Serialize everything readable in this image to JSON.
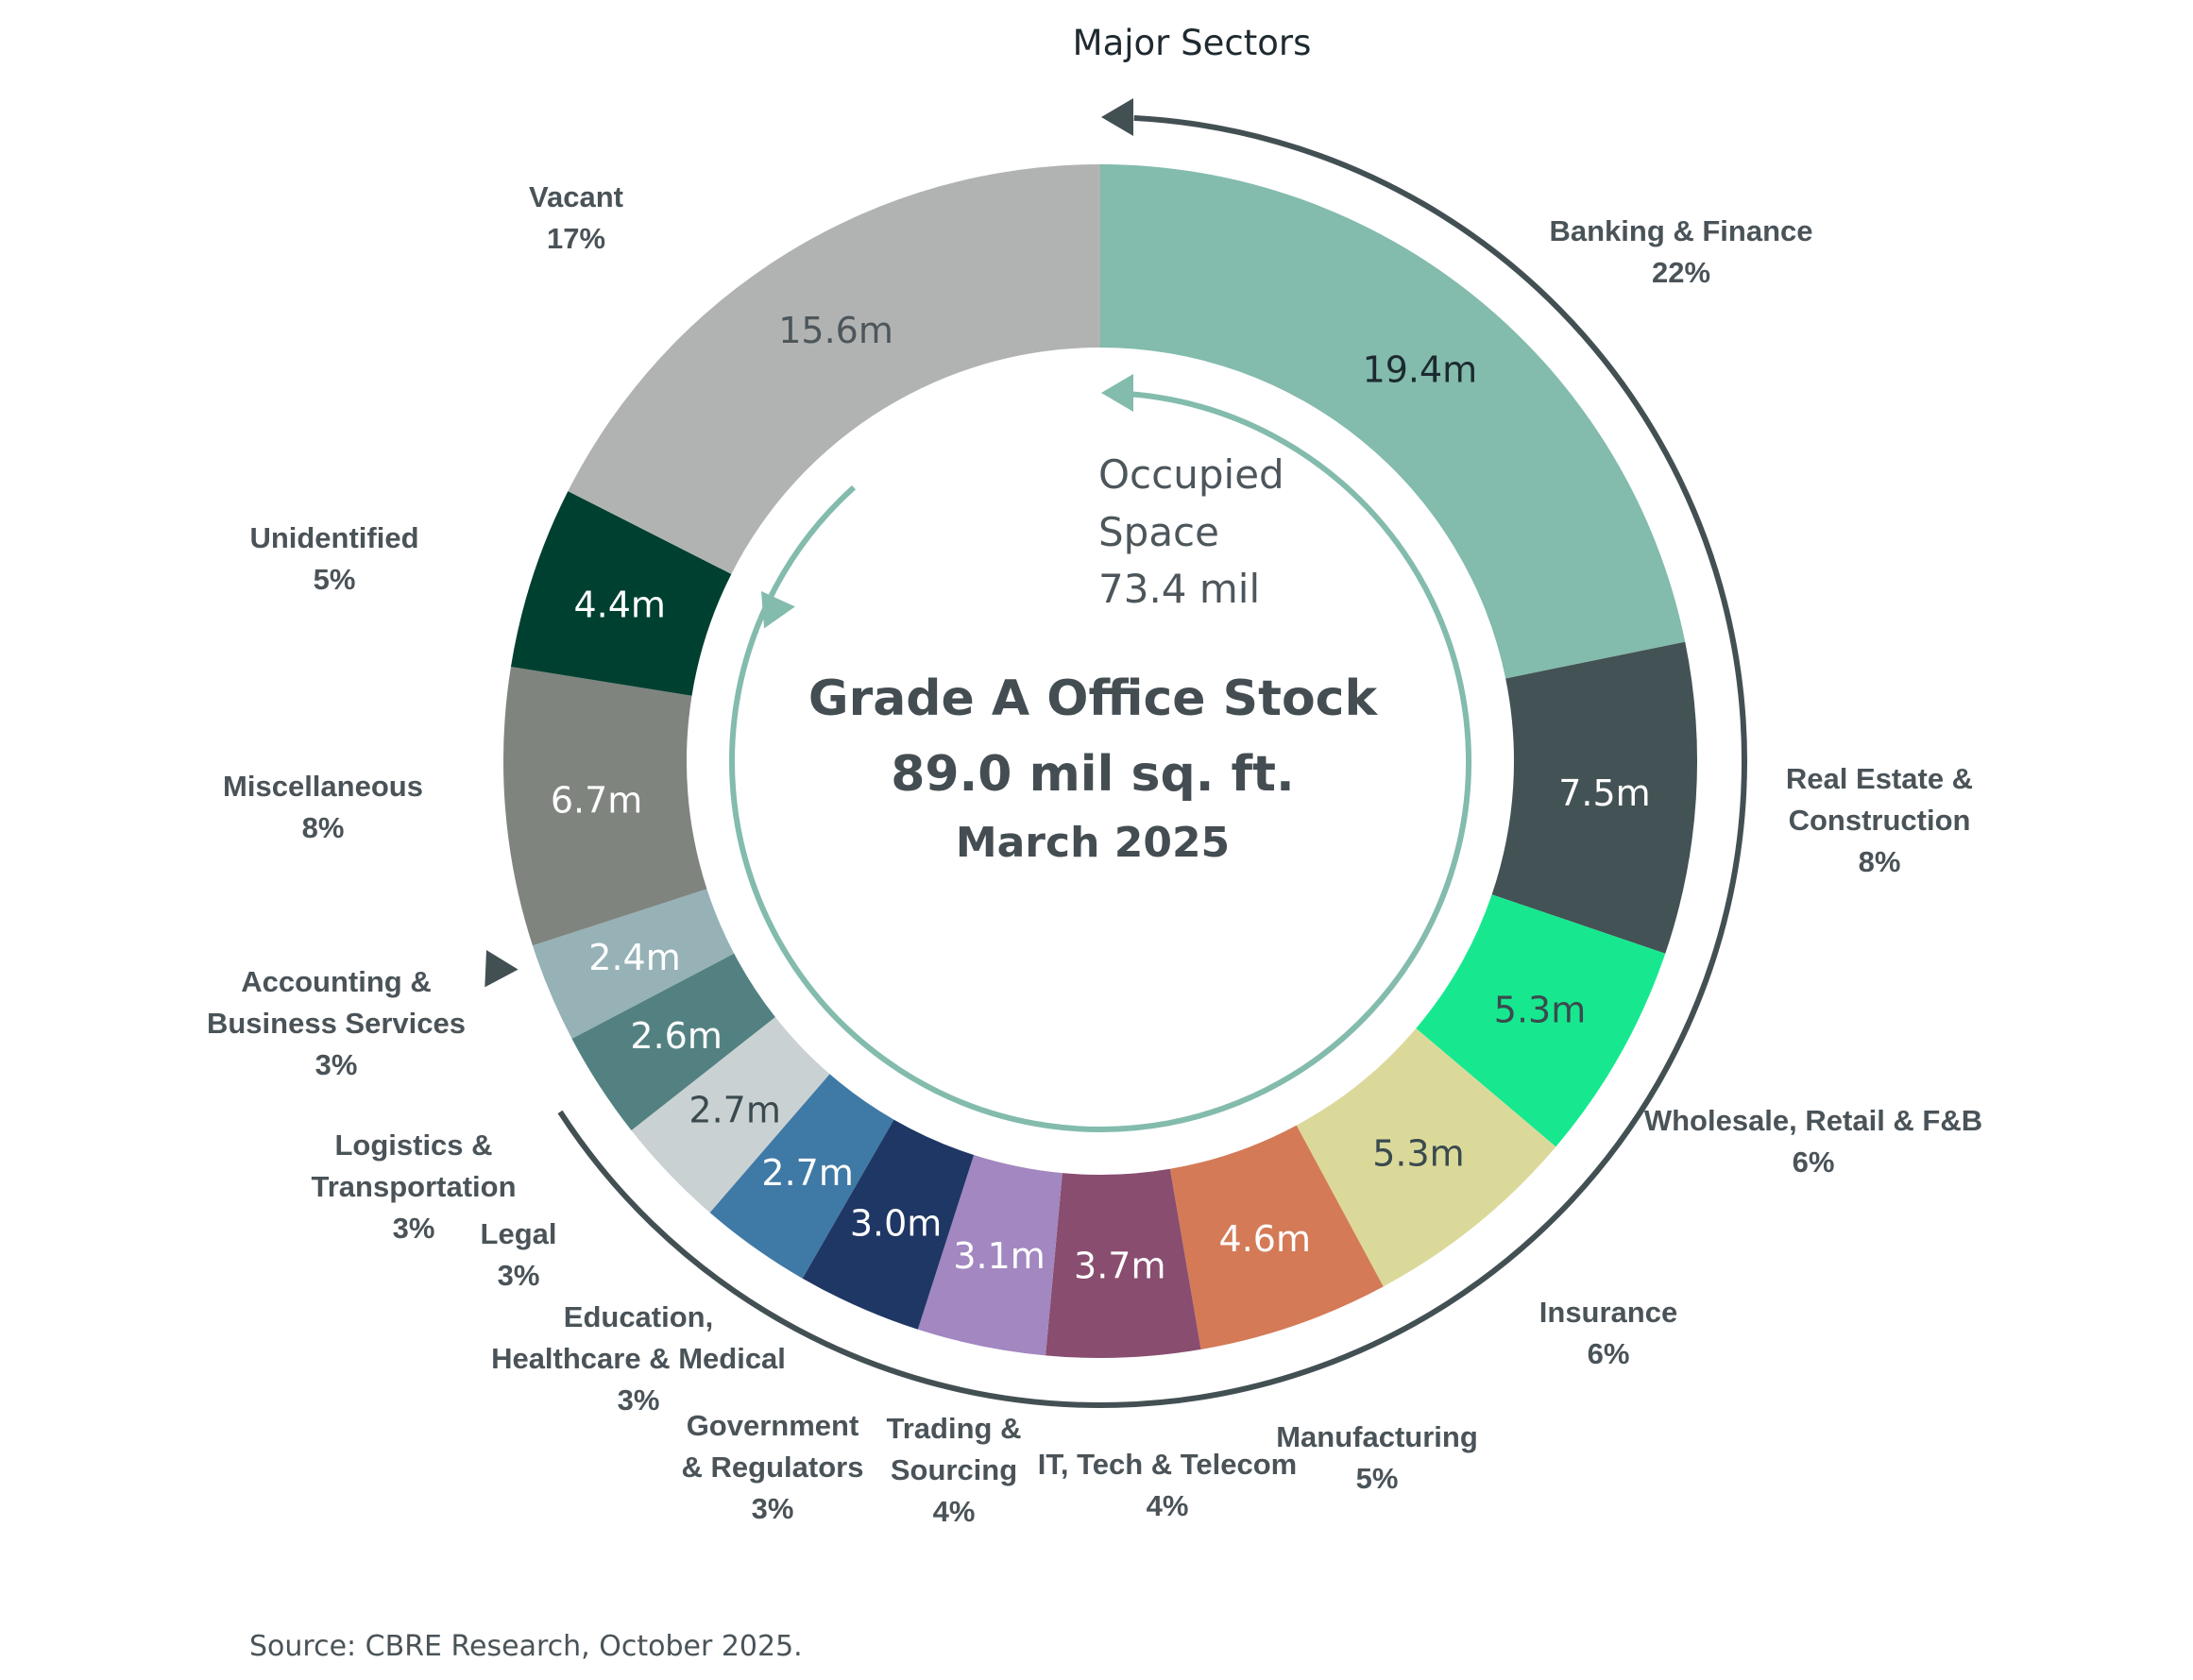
{
  "header": {
    "top_title": "Major Sectors"
  },
  "center": {
    "line1": "Grade A Office Stock",
    "line2": "89.0 mil sq. ft.",
    "line3": "March 2025"
  },
  "occupied": {
    "lines": [
      "Occupied",
      "Space",
      "73.4 mil"
    ]
  },
  "source": "Source: CBRE Research, October 2025.",
  "chart_data": {
    "type": "pie",
    "variant": "donut",
    "total": 89.0,
    "title": "Grade A Office Stock",
    "segments": [
      {
        "name_lines": [
          "Banking & Finance"
        ],
        "value": 19.4,
        "value_label": "19.4m",
        "pct": "22%",
        "color": "#83bbad",
        "text_color": "#1c2a30"
      },
      {
        "name_lines": [
          "Real Estate &",
          "Construction"
        ],
        "value": 7.5,
        "value_label": "7.5m",
        "pct": "8%",
        "color": "#435254",
        "text_color": "#ffffff"
      },
      {
        "name_lines": [
          "Wholesale, Retail & F&B"
        ],
        "value": 5.3,
        "value_label": "5.3m",
        "pct": "6%",
        "color": "#17e88f",
        "text_color": "#3a4a4e"
      },
      {
        "name_lines": [
          "Insurance"
        ],
        "value": 5.3,
        "value_label": "5.3m",
        "pct": "6%",
        "color": "#dbd99a",
        "text_color": "#3a4a4e"
      },
      {
        "name_lines": [
          "Manufacturing"
        ],
        "value": 4.6,
        "value_label": "4.6m",
        "pct": "5%",
        "color": "#d47a57",
        "text_color": "#ffffff"
      },
      {
        "name_lines": [
          "IT, Tech & Telecom"
        ],
        "value": 3.7,
        "value_label": "3.7m",
        "pct": "4%",
        "color": "#884d6f",
        "text_color": "#ffffff"
      },
      {
        "name_lines": [
          "Trading &",
          "Sourcing"
        ],
        "value": 3.1,
        "value_label": "3.1m",
        "pct": "4%",
        "color": "#a287c0",
        "text_color": "#ffffff"
      },
      {
        "name_lines": [
          "Government",
          "& Regulators"
        ],
        "value": 3.0,
        "value_label": "3.0m",
        "pct": "3%",
        "color": "#1f3765",
        "text_color": "#ffffff"
      },
      {
        "name_lines": [
          "Education,",
          "Healthcare & Medical"
        ],
        "value": 2.7,
        "value_label": "2.7m",
        "pct": "3%",
        "color": "#3f79a6",
        "text_color": "#ffffff"
      },
      {
        "name_lines": [
          "Legal"
        ],
        "value": 2.7,
        "value_label": "2.7m",
        "pct": "3%",
        "color": "#cad1d3",
        "text_color": "#3a4a4e"
      },
      {
        "name_lines": [
          "Logistics &",
          "Transportation"
        ],
        "value": 2.6,
        "value_label": "2.6m",
        "pct": "3%",
        "color": "#538181",
        "text_color": "#ffffff"
      },
      {
        "name_lines": [
          "Accounting &",
          "Business Services"
        ],
        "value": 2.4,
        "value_label": "2.4m",
        "pct": "3%",
        "color": "#96b2b6",
        "text_color": "#ffffff"
      },
      {
        "name_lines": [
          "Miscellaneous"
        ],
        "value": 6.7,
        "value_label": "6.7m",
        "pct": "8%",
        "color": "#7f847f",
        "text_color": "#ffffff"
      },
      {
        "name_lines": [
          "Unidentified"
        ],
        "value": 4.4,
        "value_label": "4.4m",
        "pct": "5%",
        "color": "#004030",
        "text_color": "#ffffff"
      },
      {
        "name_lines": [
          "Vacant"
        ],
        "value": 15.6,
        "value_label": "15.6m",
        "pct": "17%",
        "color": "#b1b3b2",
        "text_color": "#4d565b"
      }
    ]
  },
  "colors": {
    "outer_arrow": "#435053",
    "inner_arrow": "#83bbad"
  }
}
